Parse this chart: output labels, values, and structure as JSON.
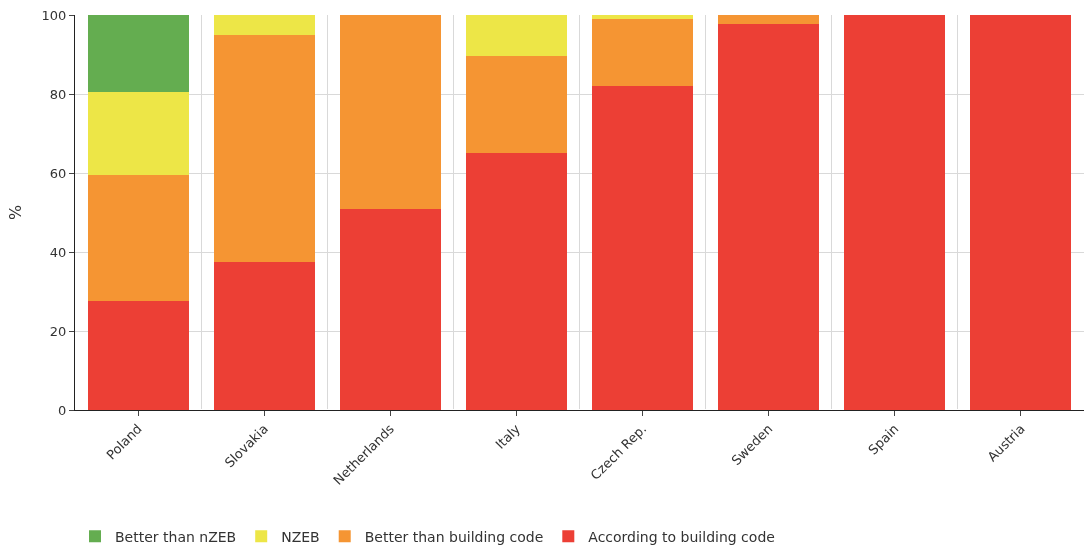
{
  "chart_data": {
    "type": "bar",
    "stacked": true,
    "ylabel": "%",
    "categories": [
      "Poland",
      "Slovakia",
      "Netherlands",
      "Italy",
      "Czech Rep.",
      "Sweden",
      "Spain",
      "Austria"
    ],
    "series": [
      {
        "name": "According to building code",
        "color": "#ec3f35",
        "values": [
          27.5,
          37.5,
          51,
          65,
          82,
          97.8,
          100,
          100
        ]
      },
      {
        "name": "Better than building code",
        "color": "#f59533",
        "values": [
          32,
          57.5,
          49,
          24.5,
          17,
          2.2,
          0,
          0
        ]
      },
      {
        "name": "NZEB",
        "color": "#ede647",
        "values": [
          21,
          5,
          0,
          10.5,
          1,
          0,
          0,
          0
        ]
      },
      {
        "name": "Better than nZEB",
        "color": "#64ad50",
        "values": [
          19.5,
          0,
          0,
          0,
          0,
          0,
          0,
          0
        ]
      }
    ],
    "ylim": [
      0,
      100
    ],
    "yticks": [
      0,
      20,
      40,
      60,
      80,
      100
    ],
    "grid": true,
    "legend": "bottom"
  }
}
